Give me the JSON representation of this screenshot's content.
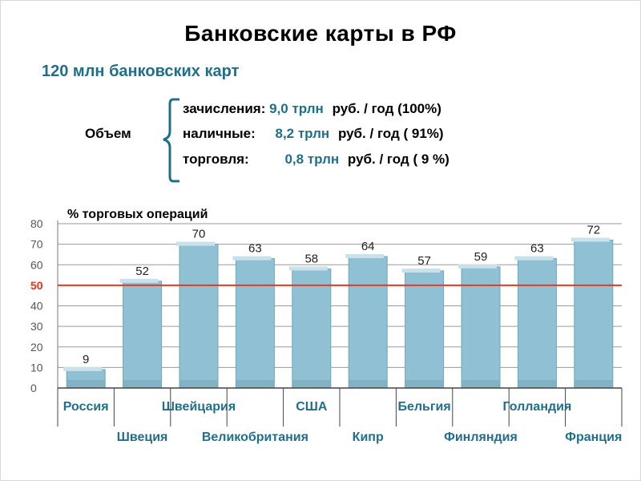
{
  "title": "Банковские карты в РФ",
  "subtitle": "120 млн банковских карт",
  "volume": {
    "label": "Объем",
    "rows": [
      {
        "name": "зачисления:",
        "amount": "9,0 трлн",
        "rest": "руб. / год  (100%)"
      },
      {
        "name": "наличные:",
        "amount": "8,2 трлн",
        "rest": "руб. / год  ( 91%)"
      },
      {
        "name": "торговля:",
        "amount": "0,8 трлн",
        "rest": "руб. / год  ( 9 %)"
      }
    ]
  },
  "colors": {
    "bar": "#8fc0d3",
    "bar_top": "#c9e1ea",
    "threshold": "#e53a1f",
    "accent": "#1f6f8b"
  },
  "chart_data": {
    "type": "bar",
    "ylabel": "% торговых операций",
    "ylim": [
      0,
      80
    ],
    "yticks": [
      0,
      10,
      20,
      30,
      40,
      50,
      60,
      70,
      80
    ],
    "threshold": 50,
    "threshold_label": "50",
    "grid": true,
    "categories": [
      "Россия",
      "Швеция",
      "Швейцария",
      "Великобритания",
      "США",
      "Кипр",
      "Бельгия",
      "Финляндия",
      "Голландия",
      "Франция"
    ],
    "values": [
      9,
      52,
      70,
      63,
      58,
      64,
      57,
      59,
      63,
      72
    ]
  }
}
